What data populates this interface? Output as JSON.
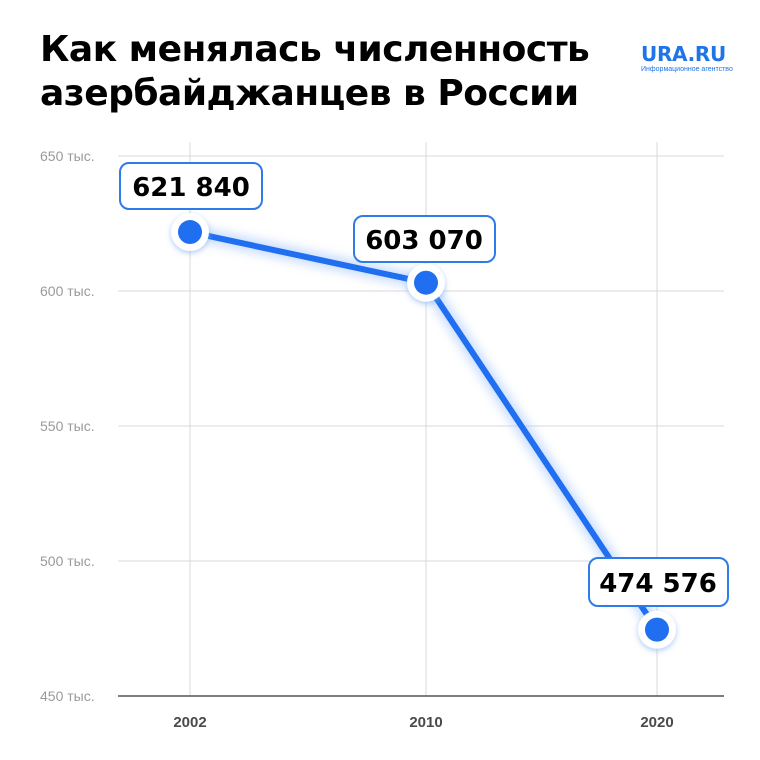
{
  "header": {
    "title_line1": "Как менялась численность",
    "title_line2": "азербайджанцев в России"
  },
  "logo": {
    "name": "URA.RU",
    "tagline": "Информационное агентство"
  },
  "colors": {
    "line": "#1f6ff0",
    "marker": "#1f6ff0",
    "label_border": "#2f7be8",
    "grid": "#d9d9d9",
    "axis": "#555555"
  },
  "chart_data": {
    "type": "line",
    "title": "Как менялась численность азербайджанцев в России",
    "xlabel": "",
    "ylabel": "",
    "categories": [
      "2002",
      "2010",
      "2020"
    ],
    "series": [
      {
        "values": [
          621840,
          603070,
          474576
        ]
      }
    ],
    "data_labels": [
      "621 840",
      "603 070",
      "474 576"
    ],
    "ylim": [
      450000,
      650000
    ],
    "yticks": [
      450000,
      500000,
      550000,
      600000,
      650000
    ],
    "ytick_labels": [
      "450 тыс.",
      "500 тыс.",
      "550 тыс.",
      "600 тыс.",
      "650 тыс."
    ],
    "grid": true,
    "legend": "none"
  }
}
